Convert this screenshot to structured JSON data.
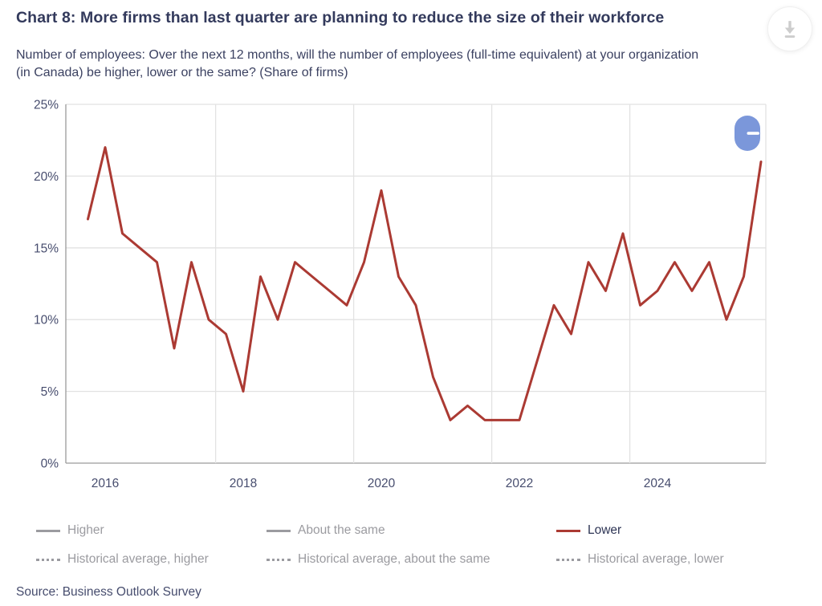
{
  "header": {
    "title": "Chart 8: More firms than last quarter are planning to reduce the size of their workforce",
    "subtitle_lines": [
      "Number of employees: Over the next 12 months, will the number of employees (full-time equivalent) at your organization",
      "(in Canada) be higher, lower or the same? (Share of firms)"
    ]
  },
  "chart_data": {
    "type": "line",
    "title": "Chart 8: More firms than last quarter are planning to reduce the size of their workforce",
    "subtitle": "Number of employees: Over the next 12 months, will the number of employees (full-time equivalent) at your organization (in Canada) be higher, lower or the same? (Share of firms)",
    "x_unit": "quarterly",
    "x_range_quarters": [
      "2015Q4",
      "2025Q3"
    ],
    "x_start_year": 2015.75,
    "x_step": 0.25,
    "xlim": [
      2015.43,
      2025.57
    ],
    "ylim": [
      0,
      25
    ],
    "y_ticks": [
      "0%",
      "5%",
      "10%",
      "15%",
      "20%",
      "25%"
    ],
    "y_tick_values": [
      0,
      5,
      10,
      15,
      20,
      25
    ],
    "x_tick_labels": [
      "2016",
      "2018",
      "2020",
      "2022",
      "2024"
    ],
    "x_tick_years": [
      2016,
      2018,
      2020,
      2022,
      2024
    ],
    "x_gridline_years": [
      2017.6,
      2019.6,
      2021.6,
      2023.6
    ],
    "grid": true,
    "legend_position": "bottom",
    "series": [
      {
        "name": "Higher",
        "visible": false,
        "style": "solid",
        "color": "#9b9ba0"
      },
      {
        "name": "About the same",
        "visible": false,
        "style": "solid",
        "color": "#9b9ba0"
      },
      {
        "name": "Lower",
        "visible": true,
        "style": "solid",
        "color": "#ab3a33",
        "values": [
          17,
          22,
          16,
          15,
          14,
          8,
          14,
          10,
          9,
          5,
          13,
          10,
          14,
          13,
          12,
          11,
          14,
          19,
          13,
          11,
          6,
          3,
          4,
          3,
          3,
          3,
          7,
          11,
          9,
          14,
          12,
          16,
          11,
          12,
          14,
          12,
          14,
          10,
          13,
          21
        ]
      },
      {
        "name": "Historical average, higher",
        "visible": false,
        "style": "dotted",
        "color": "#9b9ba0"
      },
      {
        "name": "Historical average, about the same",
        "visible": false,
        "style": "dotted",
        "color": "#9b9ba0"
      },
      {
        "name": "Historical average, lower",
        "visible": false,
        "style": "dotted",
        "color": "#9b9ba0"
      }
    ],
    "colors": {
      "grid": "#e2e2e2",
      "axis": "#9a9a9a",
      "tick_text": "#474d6e",
      "series_lower": "#ab3a33",
      "pill_button": "#7b97da"
    }
  },
  "legend": {
    "rows": [
      [
        {
          "label": "Higher",
          "swatch": "solid",
          "color": "#9b9ba0",
          "label_color": "#9b9ba0",
          "active": false
        },
        {
          "label": "About the same",
          "swatch": "solid",
          "color": "#9b9ba0",
          "label_color": "#9b9ba0",
          "active": false
        },
        {
          "label": "Lower",
          "swatch": "solid",
          "color": "#ab3a33",
          "label_color": "#2e3555",
          "active": true
        }
      ],
      [
        {
          "label": "Historical average, higher",
          "swatch": "dotted",
          "color": "#9b9ba0",
          "label_color": "#9b9ba0",
          "active": false
        },
        {
          "label": "Historical average, about the same",
          "swatch": "dotted",
          "color": "#9b9ba0",
          "label_color": "#9b9ba0",
          "active": false
        },
        {
          "label": "Historical average, lower",
          "swatch": "dotted",
          "color": "#9b9ba0",
          "label_color": "#9b9ba0",
          "active": false
        }
      ]
    ]
  },
  "footer": {
    "source": "Source: Business Outlook Survey"
  }
}
